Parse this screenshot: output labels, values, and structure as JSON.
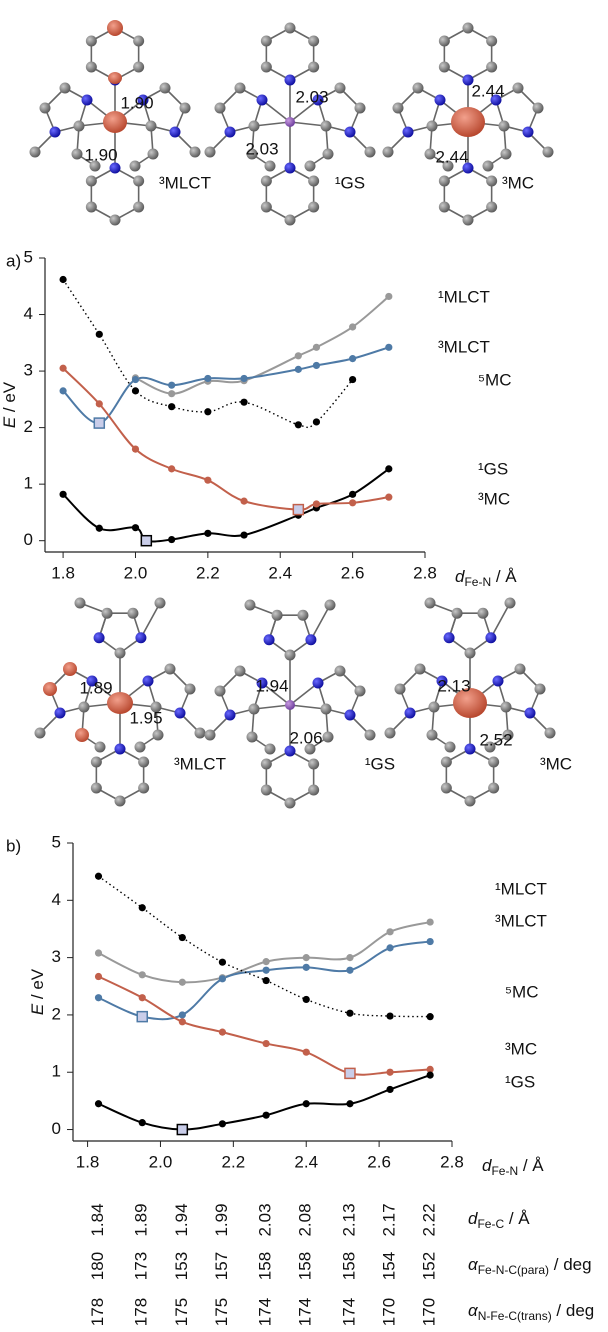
{
  "structures_top": [
    {
      "distances": [
        "1.90",
        "1.90"
      ],
      "state": "³MLCT",
      "color": "#4e7aa6"
    },
    {
      "distances": [
        "2.03",
        "2.03"
      ],
      "state": "¹GS",
      "color": "#111111"
    },
    {
      "distances": [
        "2.44",
        "2.44"
      ],
      "state": "³MC",
      "color": "#c2604b"
    }
  ],
  "structures_middle": [
    {
      "distances": [
        "1.89",
        "1.95"
      ],
      "state": "³MLCT",
      "color": "#4e7aa6"
    },
    {
      "distances": [
        "1.94",
        "2.06"
      ],
      "state": "¹GS",
      "color": "#111111"
    },
    {
      "distances": [
        "2.13",
        "2.52"
      ],
      "state": "³MC",
      "color": "#c2604b"
    }
  ],
  "chart_data": [
    {
      "type": "line",
      "panel": "a)",
      "xlabel": {
        "symbol": "d",
        "subscript": "Fe-N",
        "unit": " / Å"
      },
      "ylabel": {
        "symbol": "E",
        "unit": " / eV"
      },
      "xlim": [
        1.75,
        2.8
      ],
      "xticks": [
        1.8,
        {
          "value": 2,
          "label": "2.0"
        },
        2.2,
        2.4,
        2.6,
        2.8
      ],
      "ylim": [
        -0.2,
        5
      ],
      "yticks": [
        0,
        1,
        2,
        3,
        4,
        5
      ],
      "series": [
        {
          "name": "¹MLCT",
          "color": "#999999",
          "x": [
            2.0,
            2.1,
            2.2,
            2.3,
            2.45,
            2.5,
            2.6,
            2.7
          ],
          "values": [
            2.88,
            2.6,
            2.82,
            2.83,
            3.27,
            3.42,
            3.78,
            4.32
          ],
          "markers": [
            "circle",
            "circle",
            "circle",
            "circle",
            "circle",
            "circle",
            "circle",
            "circle"
          ],
          "dash": "solid"
        },
        {
          "name": "³MLCT",
          "color": "#4e7aa6",
          "x": [
            1.8,
            1.9,
            2.0,
            2.1,
            2.2,
            2.3,
            2.45,
            2.5,
            2.6,
            2.7
          ],
          "values": [
            2.65,
            2.08,
            2.85,
            2.75,
            2.87,
            2.87,
            3.03,
            3.1,
            3.22,
            3.42
          ],
          "markers": [
            "circle",
            "square",
            "circle",
            "circle",
            "circle",
            "circle",
            "circle",
            "circle",
            "circle",
            "circle"
          ],
          "dash": "solid"
        },
        {
          "name": "⁵MC",
          "color": "#000000",
          "x": [
            1.8,
            1.9,
            2.0,
            2.1,
            2.2,
            2.3,
            2.45,
            2.5,
            2.6
          ],
          "values": [
            4.62,
            3.65,
            2.65,
            2.37,
            2.28,
            2.45,
            2.05,
            2.1,
            2.85
          ],
          "markers": [
            "circle",
            "circle",
            "circle",
            "circle",
            "circle",
            "circle",
            "circle",
            "circle",
            "circle"
          ],
          "dash": "dotted"
        },
        {
          "name": "¹GS",
          "color": "#000000",
          "x": [
            1.8,
            1.9,
            2.0,
            2.03,
            2.1,
            2.2,
            2.3,
            2.45,
            2.5,
            2.6,
            2.7
          ],
          "values": [
            0.82,
            0.22,
            0.23,
            0.0,
            0.02,
            0.13,
            0.1,
            0.45,
            0.58,
            0.82,
            1.27
          ],
          "markers": [
            "circle",
            "circle",
            "circle",
            "square",
            "circle",
            "circle",
            "circle",
            "circle",
            "circle",
            "circle",
            "circle"
          ],
          "dash": "solid"
        },
        {
          "name": "³MC",
          "color": "#c2604b",
          "x": [
            1.8,
            1.9,
            2.0,
            2.1,
            2.2,
            2.3,
            2.45,
            2.5,
            2.6,
            2.7
          ],
          "values": [
            3.05,
            2.42,
            1.62,
            1.27,
            1.07,
            0.7,
            0.55,
            0.65,
            0.67,
            0.77
          ],
          "markers": [
            "circle",
            "circle",
            "circle",
            "circle",
            "circle",
            "circle",
            "square",
            "circle",
            "circle",
            "circle"
          ],
          "dash": "solid"
        }
      ]
    },
    {
      "type": "line",
      "panel": "b)",
      "xlabel": {
        "symbol": "d",
        "subscript": "Fe-N",
        "unit": " / Å"
      },
      "ylabel": {
        "symbol": "E",
        "unit": " / eV"
      },
      "xlim": [
        1.76,
        2.8
      ],
      "xticks": [
        1.8,
        {
          "value": 2,
          "label": "2.0"
        },
        2.2,
        2.4,
        2.6,
        2.8
      ],
      "ylim": [
        -0.2,
        5
      ],
      "yticks": [
        0,
        1,
        2,
        3,
        4,
        5
      ],
      "x": [
        1.83,
        1.95,
        2.06,
        2.17,
        2.29,
        2.4,
        2.52,
        2.63,
        2.74
      ],
      "series": [
        {
          "name": "¹MLCT",
          "color": "#999999",
          "values": [
            3.08,
            2.7,
            2.57,
            2.65,
            2.93,
            3.0,
            3.0,
            3.45,
            3.62
          ],
          "markers": [
            "circle",
            "circle",
            "circle",
            "circle",
            "circle",
            "circle",
            "circle",
            "circle",
            "circle"
          ],
          "dash": "solid"
        },
        {
          "name": "³MLCT",
          "color": "#4e7aa6",
          "values": [
            2.3,
            1.97,
            2.0,
            2.63,
            2.78,
            2.83,
            2.78,
            3.17,
            3.28
          ],
          "markers": [
            "circle",
            "square",
            "circle",
            "circle",
            "circle",
            "circle",
            "circle",
            "circle",
            "circle"
          ],
          "dash": "solid"
        },
        {
          "name": "⁵MC",
          "color": "#000000",
          "values": [
            4.42,
            3.87,
            3.35,
            2.92,
            2.6,
            2.27,
            2.03,
            1.98,
            1.97
          ],
          "markers": [
            "circle",
            "circle",
            "circle",
            "circle",
            "circle",
            "circle",
            "circle",
            "circle",
            "circle"
          ],
          "dash": "dotted"
        },
        {
          "name": "³MC",
          "color": "#c2604b",
          "values": [
            2.67,
            2.3,
            1.88,
            1.7,
            1.5,
            1.35,
            0.98,
            1.0,
            1.05
          ],
          "markers": [
            "circle",
            "circle",
            "circle",
            "circle",
            "circle",
            "circle",
            "square",
            "circle",
            "circle"
          ],
          "dash": "solid"
        },
        {
          "name": "¹GS",
          "color": "#000000",
          "values": [
            0.45,
            0.12,
            0.0,
            0.1,
            0.25,
            0.45,
            0.45,
            0.7,
            0.95
          ],
          "markers": [
            "circle",
            "circle",
            "square",
            "circle",
            "circle",
            "circle",
            "circle",
            "circle",
            "circle"
          ],
          "dash": "solid"
        }
      ],
      "table": [
        {
          "symbol": "d",
          "subscript": "Fe-C",
          "unit": " / Å",
          "values": [
            1.84,
            1.89,
            1.94,
            1.99,
            2.03,
            2.08,
            2.13,
            2.17,
            2.22
          ]
        },
        {
          "symbol": "α",
          "subscript": "Fe-N-C(para)",
          "unit": " / deg",
          "values": [
            180,
            173,
            153,
            157,
            158,
            158,
            158,
            154,
            152
          ]
        },
        {
          "symbol": "α",
          "subscript": "N-Fe-C(trans)",
          "unit": " / deg",
          "values": [
            178,
            178,
            175,
            175,
            174,
            174,
            174,
            170,
            170
          ]
        }
      ]
    }
  ]
}
